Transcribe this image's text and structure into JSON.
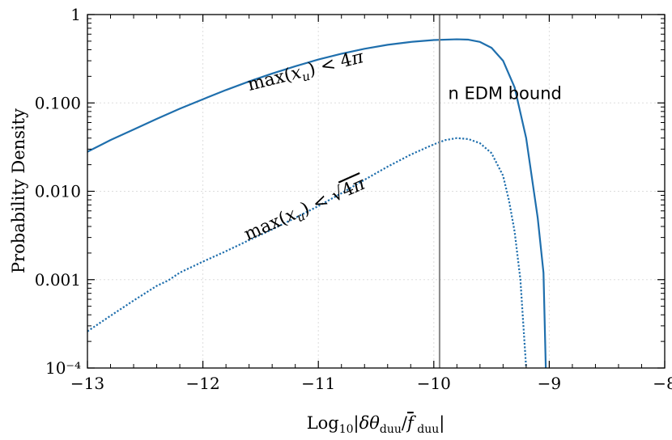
{
  "chart_data": {
    "type": "line",
    "title": "",
    "xlabel": "Log₁₀|δθ_duu/f̄_duu|",
    "ylabel": "Probability Density",
    "xlim": [
      -13,
      -8
    ],
    "ylim": [
      0.0001,
      1
    ],
    "yscale": "log",
    "grid": true,
    "x_ticks": [
      {
        "value": -13,
        "label": "−13"
      },
      {
        "value": -12,
        "label": "−12"
      },
      {
        "value": -11,
        "label": "−11"
      },
      {
        "value": -10,
        "label": "−10"
      },
      {
        "value": -9,
        "label": "−9"
      },
      {
        "value": -8,
        "label": "−8"
      }
    ],
    "y_ticks": [
      {
        "value": 0.0001,
        "label": "10⁻⁴"
      },
      {
        "value": 0.001,
        "label": "0.001"
      },
      {
        "value": 0.01,
        "label": "0.010"
      },
      {
        "value": 0.1,
        "label": "0.100"
      },
      {
        "value": 1,
        "label": "1"
      }
    ],
    "series": [
      {
        "style": "solid",
        "color": "#1f6fad",
        "points": [
          [
            -13.0,
            0.028
          ],
          [
            -12.8,
            0.038
          ],
          [
            -12.6,
            0.05
          ],
          [
            -12.4,
            0.066
          ],
          [
            -12.2,
            0.086
          ],
          [
            -12.0,
            0.11
          ],
          [
            -11.8,
            0.14
          ],
          [
            -11.6,
            0.175
          ],
          [
            -11.4,
            0.215
          ],
          [
            -11.2,
            0.26
          ],
          [
            -11.0,
            0.31
          ],
          [
            -10.8,
            0.36
          ],
          [
            -10.6,
            0.41
          ],
          [
            -10.4,
            0.455
          ],
          [
            -10.2,
            0.49
          ],
          [
            -10.0,
            0.515
          ],
          [
            -9.8,
            0.525
          ],
          [
            -9.7,
            0.52
          ],
          [
            -9.6,
            0.49
          ],
          [
            -9.5,
            0.42
          ],
          [
            -9.4,
            0.3
          ],
          [
            -9.3,
            0.15
          ],
          [
            -9.2,
            0.04
          ],
          [
            -9.1,
            0.005
          ],
          [
            -9.05,
            0.0012
          ],
          [
            -9.03,
            0.0001
          ]
        ]
      },
      {
        "style": "dotted",
        "color": "#1f6fad",
        "points": [
          [
            -13.0,
            0.00026
          ],
          [
            -12.8,
            0.00039
          ],
          [
            -12.6,
            0.00058
          ],
          [
            -12.4,
            0.00085
          ],
          [
            -12.3,
            0.00098
          ],
          [
            -12.2,
            0.0012
          ],
          [
            -12.0,
            0.0016
          ],
          [
            -11.8,
            0.0021
          ],
          [
            -11.6,
            0.0028
          ],
          [
            -11.4,
            0.0037
          ],
          [
            -11.2,
            0.005
          ],
          [
            -11.0,
            0.0068
          ],
          [
            -10.8,
            0.0095
          ],
          [
            -10.6,
            0.0135
          ],
          [
            -10.4,
            0.019
          ],
          [
            -10.2,
            0.026
          ],
          [
            -10.0,
            0.034
          ],
          [
            -9.9,
            0.038
          ],
          [
            -9.8,
            0.04
          ],
          [
            -9.7,
            0.039
          ],
          [
            -9.6,
            0.035
          ],
          [
            -9.5,
            0.027
          ],
          [
            -9.4,
            0.015
          ],
          [
            -9.35,
            0.008
          ],
          [
            -9.3,
            0.0035
          ],
          [
            -9.25,
            0.001
          ],
          [
            -9.2,
            0.0001
          ]
        ]
      }
    ],
    "vline": {
      "x": -9.95,
      "color": "#888888"
    },
    "annotations": [
      {
        "text": "n EDM bound",
        "x": -9.96,
        "y": 0.12
      },
      {
        "text": "max(x_u) < 4π",
        "x": -11.1,
        "y": 0.2,
        "rotation": -14
      },
      {
        "text": "max(x_u) < √4π",
        "x": -11.1,
        "y": 0.0055,
        "rotation": -24
      }
    ]
  }
}
